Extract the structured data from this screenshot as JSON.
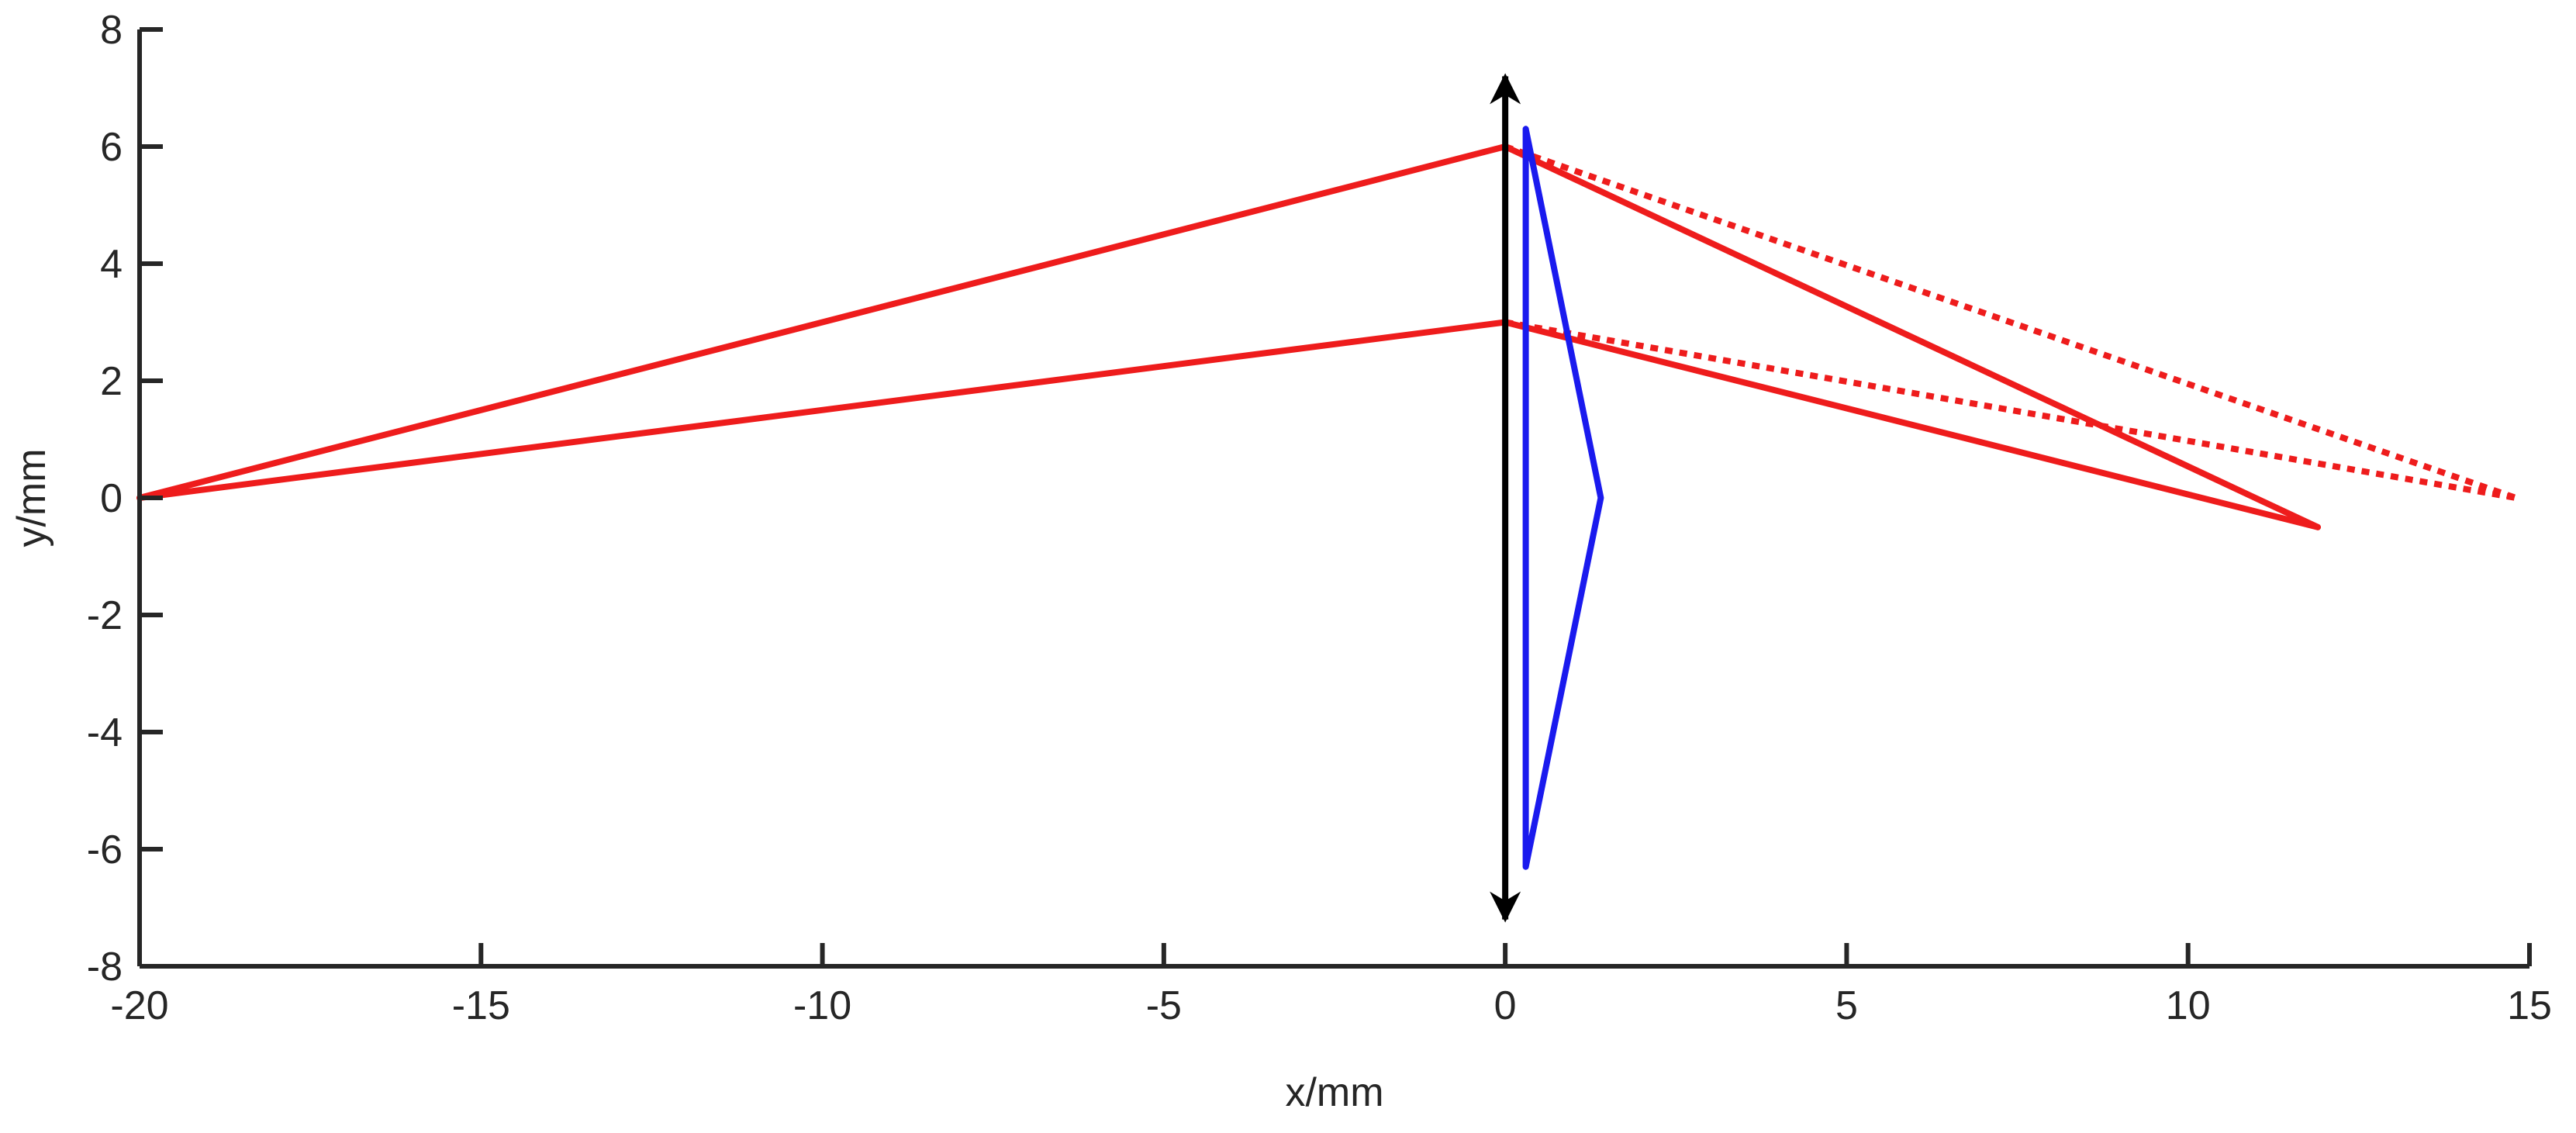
{
  "chart_data": {
    "type": "line",
    "title": "",
    "xlabel": "x/mm",
    "ylabel": "y/mm",
    "xlim": [
      -20,
      15
    ],
    "ylim": [
      -8,
      8
    ],
    "xticks": [
      -20,
      -15,
      -10,
      -5,
      0,
      5,
      10,
      15
    ],
    "yticks": [
      -8,
      -6,
      -4,
      -2,
      0,
      2,
      4,
      6,
      8
    ],
    "grid": false,
    "legend": "none",
    "colors": {
      "rays": "#ee1c1c",
      "lens": "#1a1aee",
      "arrow": "#000000",
      "axes": "#262626"
    },
    "series": [
      {
        "color": "#ee1c1c",
        "style": "solid",
        "points": [
          [
            -20,
            0
          ],
          [
            0,
            6
          ],
          [
            11.9,
            -0.5
          ]
        ]
      },
      {
        "color": "#ee1c1c",
        "style": "solid",
        "points": [
          [
            -20,
            0
          ],
          [
            0,
            3
          ],
          [
            11.9,
            -0.5
          ]
        ]
      },
      {
        "color": "#ee1c1c",
        "style": "dotted",
        "points": [
          [
            0,
            6
          ],
          [
            14.8,
            0
          ]
        ]
      },
      {
        "color": "#ee1c1c",
        "style": "dotted",
        "points": [
          [
            0,
            3
          ],
          [
            14.8,
            0
          ]
        ]
      },
      {
        "color": "#1a1aee",
        "style": "solid",
        "points": [
          [
            0.3,
            6.3
          ],
          [
            0.3,
            -6.3
          ],
          [
            1.4,
            0
          ],
          [
            0.3,
            6.3
          ]
        ]
      }
    ],
    "annotations": [
      {
        "type": "double-arrow",
        "color": "#000000",
        "x": 0,
        "y_from": -7.2,
        "y_to": 7.2
      }
    ]
  }
}
